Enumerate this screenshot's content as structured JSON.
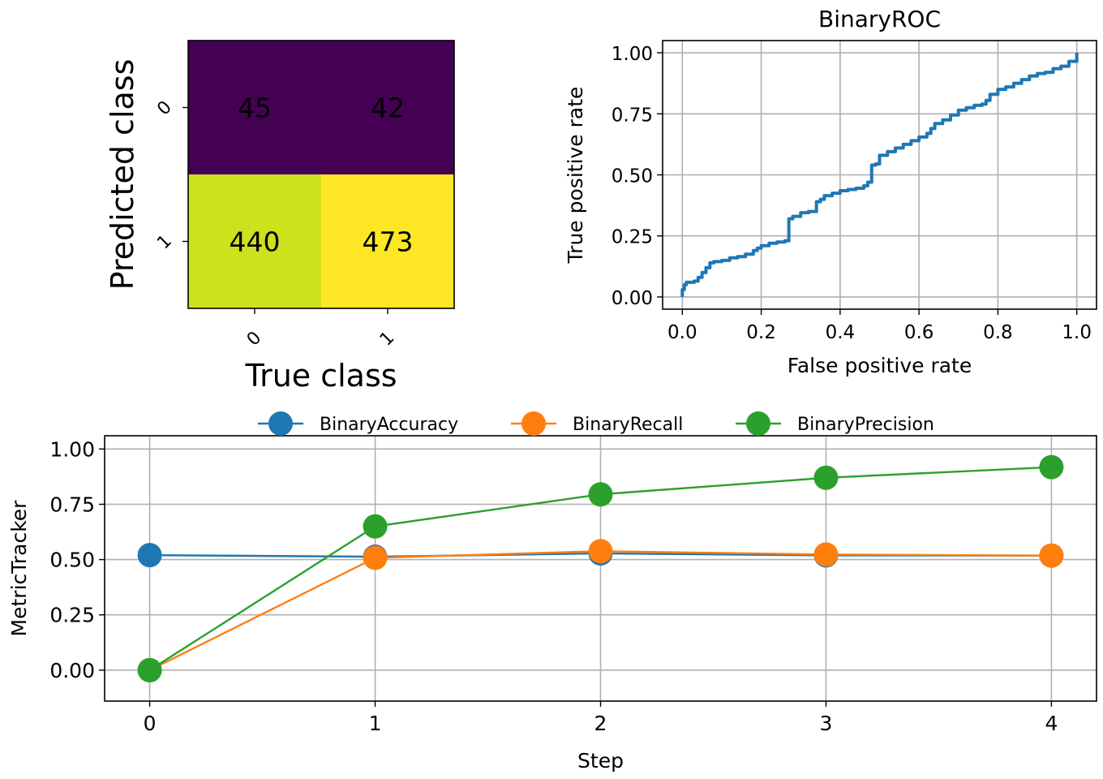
{
  "chart_data": [
    {
      "type": "heatmap",
      "title": "",
      "xlabel": "True class",
      "ylabel": "Predicted class",
      "x_categories": [
        "0",
        "1"
      ],
      "y_categories": [
        "0",
        "1"
      ],
      "values": [
        [
          45,
          42
        ],
        [
          440,
          473
        ]
      ],
      "colormap": "viridis",
      "cell_colors": [
        [
          "#440154",
          "#440154"
        ],
        [
          "#cde11d",
          "#fde725"
        ]
      ]
    },
    {
      "type": "line",
      "title": "BinaryROC",
      "xlabel": "False positive rate",
      "ylabel": "True positive rate",
      "xlim": [
        -0.05,
        1.05
      ],
      "ylim": [
        -0.05,
        1.05
      ],
      "xticks": [
        "0.0",
        "0.2",
        "0.4",
        "0.6",
        "0.8",
        "1.0"
      ],
      "yticks": [
        "0.00",
        "0.25",
        "0.50",
        "0.75",
        "1.00"
      ],
      "grid": true,
      "series": [
        {
          "color": "#1f77b4",
          "x": [
            0.0,
            0.0,
            0.005,
            0.01,
            0.03,
            0.04,
            0.05,
            0.06,
            0.07,
            0.08,
            0.1,
            0.12,
            0.14,
            0.16,
            0.18,
            0.19,
            0.2,
            0.22,
            0.24,
            0.26,
            0.27,
            0.27,
            0.28,
            0.3,
            0.32,
            0.34,
            0.34,
            0.35,
            0.36,
            0.38,
            0.4,
            0.42,
            0.44,
            0.46,
            0.47,
            0.48,
            0.48,
            0.49,
            0.5,
            0.5,
            0.52,
            0.54,
            0.56,
            0.58,
            0.6,
            0.62,
            0.63,
            0.64,
            0.66,
            0.68,
            0.7,
            0.72,
            0.74,
            0.76,
            0.77,
            0.78,
            0.8,
            0.82,
            0.84,
            0.86,
            0.88,
            0.9,
            0.92,
            0.94,
            0.96,
            0.98,
            1.0
          ],
          "y": [
            0.0,
            0.03,
            0.05,
            0.06,
            0.065,
            0.08,
            0.1,
            0.12,
            0.14,
            0.145,
            0.15,
            0.16,
            0.165,
            0.175,
            0.19,
            0.2,
            0.21,
            0.22,
            0.225,
            0.23,
            0.27,
            0.32,
            0.33,
            0.345,
            0.35,
            0.37,
            0.39,
            0.4,
            0.415,
            0.425,
            0.435,
            0.44,
            0.445,
            0.455,
            0.47,
            0.49,
            0.54,
            0.545,
            0.55,
            0.58,
            0.595,
            0.61,
            0.625,
            0.64,
            0.655,
            0.67,
            0.69,
            0.71,
            0.725,
            0.745,
            0.765,
            0.775,
            0.785,
            0.79,
            0.805,
            0.83,
            0.85,
            0.86,
            0.875,
            0.89,
            0.905,
            0.915,
            0.92,
            0.935,
            0.945,
            0.965,
            1.0
          ]
        }
      ]
    },
    {
      "type": "line",
      "title": "",
      "xlabel": "Step",
      "ylabel": "MetricTracker",
      "xlim": [
        -0.2,
        4.2
      ],
      "ylim": [
        -0.14,
        1.06
      ],
      "xticks": [
        "0",
        "1",
        "2",
        "3",
        "4"
      ],
      "yticks": [
        "0.00",
        "0.25",
        "0.50",
        "0.75",
        "1.00"
      ],
      "grid": true,
      "legend_position": "top-center",
      "x": [
        0,
        1,
        2,
        3,
        4
      ],
      "series": [
        {
          "name": "BinaryAccuracy",
          "color": "#1f77b4",
          "values": [
            0.52,
            0.513,
            0.528,
            0.519,
            0.518
          ],
          "marker": "circle"
        },
        {
          "name": "BinaryRecall",
          "color": "#ff7f0e",
          "values": [
            null,
            0.508,
            0.538,
            0.523,
            0.518
          ],
          "marker": "circle"
        },
        {
          "name": "BinaryPrecision",
          "color": "#2ca02c",
          "values": [
            0.0,
            0.65,
            0.795,
            0.87,
            0.918
          ],
          "marker": "circle"
        }
      ],
      "recall_at_zero": 0.0
    }
  ]
}
